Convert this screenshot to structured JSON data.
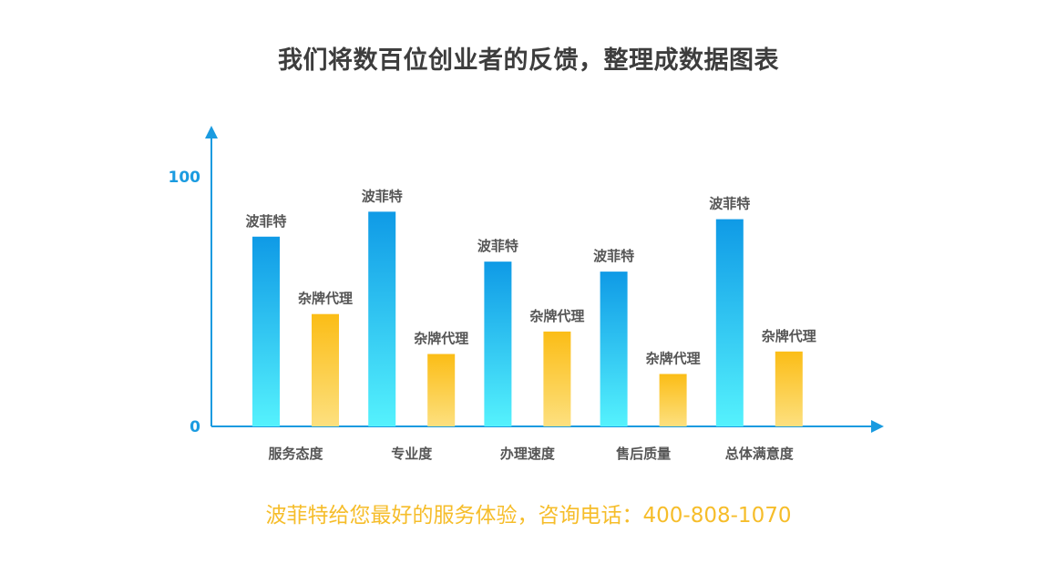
{
  "title": "我们将数百位创业者的反馈，整理成数据图表",
  "footer": "波菲特给您最好的服务体验，咨询电话：400-808-1070",
  "colors": {
    "axis": "#1a9be0",
    "series1_top": "#0f9ae6",
    "series1_bottom": "#55f2fd",
    "series2_top": "#fbbd16",
    "series2_bottom": "#fde07f",
    "label": "#555555",
    "tick": "#1a9be0",
    "footer": "#f6bd2a"
  },
  "chart_data": {
    "type": "bar",
    "categories": [
      "服务态度",
      "专业度",
      "办理速度",
      "售后质量",
      "总体满意度"
    ],
    "series": [
      {
        "name": "波菲特",
        "values": [
          76,
          86,
          66,
          62,
          83
        ]
      },
      {
        "name": "杂牌代理",
        "values": [
          45,
          29,
          38,
          21,
          30
        ]
      }
    ],
    "yticks": [
      0,
      100
    ],
    "ylim": [
      0,
      100
    ],
    "legend": "none",
    "grid": false
  }
}
